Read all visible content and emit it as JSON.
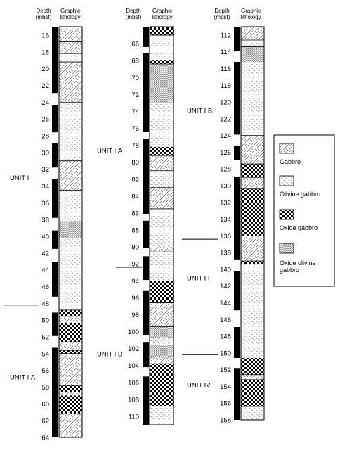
{
  "headers": {
    "depth": [
      "Depth",
      "(mbsf)"
    ],
    "lithology": [
      "Graphic",
      "lithology"
    ]
  },
  "legend": [
    {
      "key": "gabbro",
      "label": [
        "Gabbro"
      ]
    },
    {
      "key": "olivine",
      "label": [
        "Olivine gabbro"
      ]
    },
    {
      "key": "oxide",
      "label": [
        "Oxide gabbro"
      ]
    },
    {
      "key": "oxolivine",
      "label": [
        "Oxide olivine",
        "gabbro"
      ]
    }
  ],
  "columns": [
    {
      "depth_min": 15,
      "depth_max": 64,
      "ticks": [
        16,
        18,
        20,
        22,
        24,
        26,
        28,
        30,
        32,
        34,
        36,
        38,
        40,
        42,
        44,
        46,
        48,
        50,
        52,
        54,
        56,
        58,
        60,
        62,
        64
      ],
      "recovery": [
        [
          15,
          22.9
        ],
        [
          24.4,
          27.6
        ],
        [
          28.9,
          31.8
        ],
        [
          33.2,
          37.8
        ],
        [
          39.3,
          41.5
        ],
        [
          43.1,
          47.2
        ],
        [
          49.1,
          51.9
        ],
        [
          53.3,
          64
        ]
      ],
      "lithology": [
        {
          "from": 15.2,
          "to": 16.8,
          "type": "gabbro"
        },
        {
          "from": 16.8,
          "to": 18.2,
          "type": "gabbro"
        },
        {
          "from": 18.2,
          "to": 19.2,
          "type": "olivine"
        },
        {
          "from": 19.2,
          "to": 24.0,
          "type": "gabbro"
        },
        {
          "from": 24.0,
          "to": 31.0,
          "type": "olivine"
        },
        {
          "from": 31.0,
          "to": 34.5,
          "type": "gabbro"
        },
        {
          "from": 34.5,
          "to": 38.2,
          "type": "olivine"
        },
        {
          "from": 38.2,
          "to": 40.2,
          "type": "oxolivine"
        },
        {
          "from": 40.2,
          "to": 48.8,
          "type": "olivine"
        },
        {
          "from": 48.8,
          "to": 49.6,
          "type": "oxide"
        },
        {
          "from": 49.6,
          "to": 50.4,
          "type": "gabbro"
        },
        {
          "from": 50.4,
          "to": 52.6,
          "type": "oxide"
        },
        {
          "from": 52.6,
          "to": 53.6,
          "type": "gabbro"
        },
        {
          "from": 53.6,
          "to": 54.0,
          "type": "oxide"
        },
        {
          "from": 54.0,
          "to": 57.8,
          "type": "gabbro"
        },
        {
          "from": 57.8,
          "to": 58.6,
          "type": "oxide"
        },
        {
          "from": 58.6,
          "to": 59.0,
          "type": "gabbro"
        },
        {
          "from": 59.0,
          "to": 61.2,
          "type": "oxide"
        },
        {
          "from": 61.2,
          "to": 64.0,
          "type": "gabbro"
        }
      ],
      "contacts": [
        16.8,
        18.2,
        19.2,
        24.0,
        31.0,
        34.5,
        40.2,
        48.8,
        52.6,
        53.6,
        54.0,
        57.8,
        61.2
      ]
    },
    {
      "depth_min": 64,
      "depth_max": 111,
      "ticks": [
        66,
        68,
        70,
        72,
        74,
        76,
        78,
        80,
        82,
        84,
        86,
        88,
        90,
        92,
        94,
        96,
        98,
        100,
        102,
        104,
        106,
        108,
        110
      ],
      "recovery": [
        [
          64,
          66.4
        ],
        [
          67.1,
          76.4
        ],
        [
          77.2,
          86.1
        ],
        [
          86.9,
          90.1
        ],
        [
          91.1,
          93.9
        ],
        [
          95.2,
          100.4
        ],
        [
          101.3,
          104.2
        ],
        [
          105.3,
          111
        ]
      ],
      "lithology": [
        {
          "from": 64.0,
          "to": 65.0,
          "type": "oxide"
        },
        {
          "from": 65.0,
          "to": 66.4,
          "type": "olivine"
        },
        {
          "from": 67.1,
          "to": 68.0,
          "type": "olivine"
        },
        {
          "from": 68.0,
          "to": 68.4,
          "type": "oxide"
        },
        {
          "from": 68.4,
          "to": 73.0,
          "type": "oxolivine"
        },
        {
          "from": 73.0,
          "to": 78.2,
          "type": "olivine"
        },
        {
          "from": 78.2,
          "to": 79.2,
          "type": "oxide"
        },
        {
          "from": 79.2,
          "to": 81.0,
          "type": "gabbro"
        },
        {
          "from": 81.0,
          "to": 83.0,
          "type": "olivine"
        },
        {
          "from": 83.0,
          "to": 85.5,
          "type": "gabbro"
        },
        {
          "from": 85.5,
          "to": 90.0,
          "type": "olivine"
        },
        {
          "from": 90.0,
          "to": 90.6,
          "type": "gabbro"
        },
        {
          "from": 90.6,
          "to": 94.0,
          "type": "olivine"
        },
        {
          "from": 94.0,
          "to": 96.6,
          "type": "oxide"
        },
        {
          "from": 96.6,
          "to": 99.4,
          "type": "gabbro"
        },
        {
          "from": 99.4,
          "to": 100.8,
          "type": "oxolivine"
        },
        {
          "from": 100.8,
          "to": 101.6,
          "type": "olivine"
        },
        {
          "from": 101.6,
          "to": 103.0,
          "type": "oxolivine"
        },
        {
          "from": 103.0,
          "to": 103.8,
          "type": "gabbro"
        },
        {
          "from": 103.8,
          "to": 108.8,
          "type": "oxide"
        },
        {
          "from": 108.8,
          "to": 111.0,
          "type": "olivine"
        }
      ],
      "contacts": [
        65.0,
        68.4,
        73.0,
        79.2,
        81.0,
        83.0,
        85.5,
        90.6,
        96.6,
        99.4,
        103.8,
        108.8
      ]
    },
    {
      "depth_min": 111,
      "depth_max": 158,
      "ticks": [
        112,
        114,
        116,
        118,
        120,
        122,
        124,
        126,
        128,
        130,
        132,
        134,
        136,
        138,
        140,
        142,
        144,
        146,
        148,
        150,
        152,
        154,
        156,
        158
      ],
      "recovery": [
        [
          111,
          113.9
        ],
        [
          115.2,
          123.9
        ],
        [
          125.2,
          126.9
        ],
        [
          128.9,
          138.9
        ],
        [
          140.2,
          144.9
        ],
        [
          146.9,
          150.6
        ],
        [
          151.8,
          158
        ]
      ],
      "lithology": [
        {
          "from": 111.0,
          "to": 112.6,
          "type": "gabbro"
        },
        {
          "from": 112.6,
          "to": 113.4,
          "type": "olivine"
        },
        {
          "from": 113.4,
          "to": 115.2,
          "type": "oxolivine"
        },
        {
          "from": 115.2,
          "to": 124.0,
          "type": "olivine"
        },
        {
          "from": 124.0,
          "to": 127.4,
          "type": "gabbro"
        },
        {
          "from": 127.4,
          "to": 129.0,
          "type": "oxide"
        },
        {
          "from": 129.0,
          "to": 130.4,
          "type": "gabbro"
        },
        {
          "from": 130.4,
          "to": 136.0,
          "type": "oxide"
        },
        {
          "from": 136.0,
          "to": 139.0,
          "type": "gabbro"
        },
        {
          "from": 139.0,
          "to": 139.4,
          "type": "oxide"
        },
        {
          "from": 139.4,
          "to": 150.6,
          "type": "olivine"
        },
        {
          "from": 150.6,
          "to": 152.6,
          "type": "oxide"
        },
        {
          "from": 152.6,
          "to": 153.2,
          "type": "gabbro"
        },
        {
          "from": 153.2,
          "to": 156.4,
          "type": "oxide"
        },
        {
          "from": 156.4,
          "to": 158.0,
          "type": "olivine"
        }
      ],
      "contacts": [
        112.6,
        113.4,
        124.0,
        127.4,
        129.0,
        130.4,
        136.0,
        139.0,
        152.6,
        153.2,
        156.4
      ]
    }
  ],
  "units": [
    {
      "label": "UNIT I",
      "col": 0,
      "depth": 33
    },
    {
      "label": "UNIT IIA",
      "col": 0,
      "depth": 56.8
    },
    {
      "label": "UNIT IIA",
      "col": 1,
      "depth": 78.6
    },
    {
      "label": "UNIT IIB",
      "col": 1,
      "depth": 102.6
    },
    {
      "label": "UNIT IIB",
      "col": 2,
      "depth": 121
    },
    {
      "label": "UNIT III",
      "col": 2,
      "depth": 141
    },
    {
      "label": "UNIT IV",
      "col": 2,
      "depth": 153.8
    }
  ],
  "boundaries": [
    {
      "col": 0,
      "depth": 48.2
    },
    {
      "col": 1,
      "depth": 92.4
    },
    {
      "col": 2,
      "depth": 136.4
    },
    {
      "col": 2,
      "depth": 150.2
    }
  ]
}
